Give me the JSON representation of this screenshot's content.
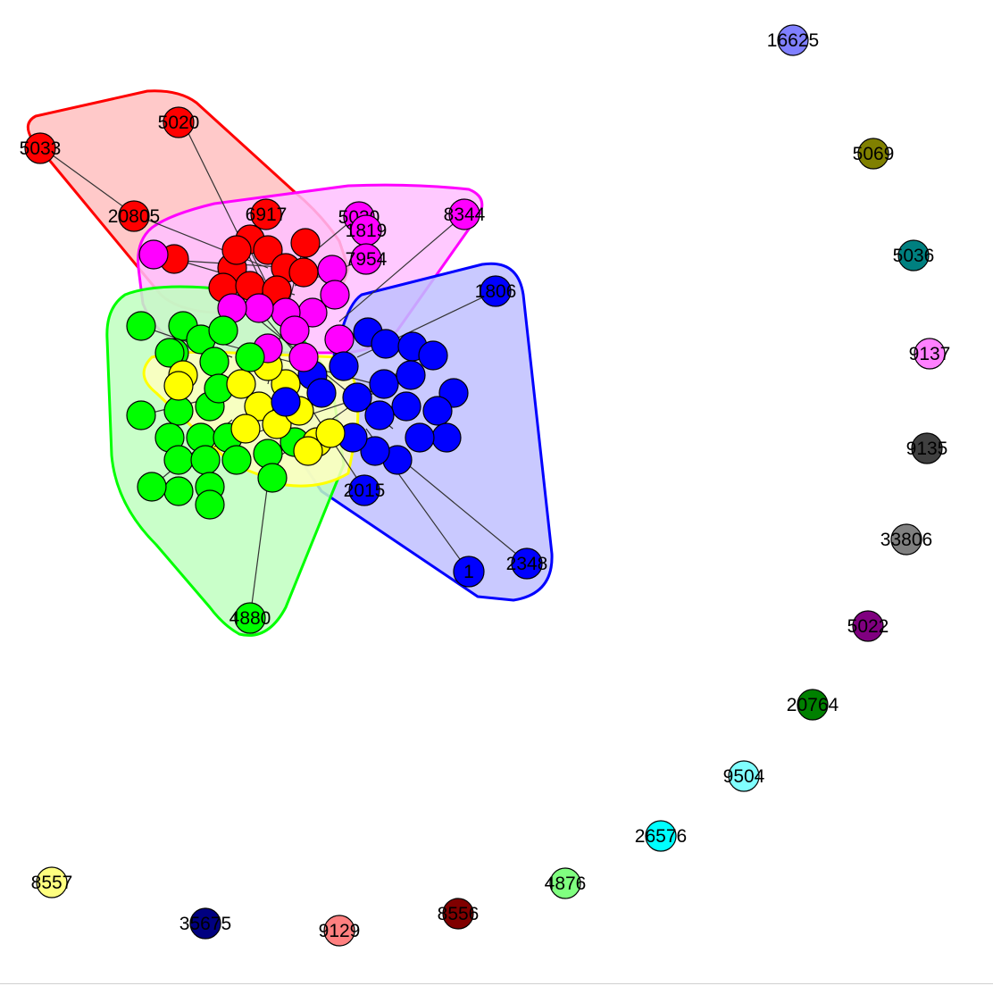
{
  "graph": {
    "groups": [
      {
        "id": "red",
        "color": "#FF0000",
        "fill": "#FFBFBF"
      },
      {
        "id": "magenta",
        "color": "#FF00FF",
        "fill": "#FFBFFF"
      },
      {
        "id": "blue",
        "color": "#0000FF",
        "fill": "#BFBFFF"
      },
      {
        "id": "green",
        "color": "#00FF00",
        "fill": "#BFFFBF"
      },
      {
        "id": "yellow",
        "color": "#FFFF00",
        "fill": "#FFFFBF"
      }
    ],
    "nodes": [
      {
        "id": "5020",
        "label": "5020",
        "group": "red",
        "color": "#FF0000"
      },
      {
        "id": "5033",
        "label": "5033",
        "group": "red",
        "color": "#FF0000"
      },
      {
        "id": "20805",
        "label": "20805",
        "group": "red",
        "color": "#FF0000"
      },
      {
        "id": "6917",
        "label": "6917",
        "group": "red",
        "color": "#FF0000"
      },
      {
        "id": "5030",
        "label": "5030",
        "group": "magenta",
        "color": "#FF00FF"
      },
      {
        "id": "8344",
        "label": "8344",
        "group": "magenta",
        "color": "#FF00FF"
      },
      {
        "id": "1819",
        "label": "1819",
        "group": "magenta",
        "color": "#FF00FF"
      },
      {
        "id": "7954",
        "label": "7954",
        "group": "magenta",
        "color": "#FF00FF"
      },
      {
        "id": "1806",
        "label": "1806",
        "group": "blue",
        "color": "#0000FF"
      },
      {
        "id": "2015",
        "label": "2015",
        "group": "blue",
        "color": "#0000FF"
      },
      {
        "id": "1",
        "label": "1",
        "group": "blue",
        "color": "#0000FF"
      },
      {
        "id": "2348",
        "label": "2348",
        "group": "blue",
        "color": "#0000FF"
      },
      {
        "id": "4880",
        "label": "4880",
        "group": "green",
        "color": "#00FF00"
      },
      {
        "id": "16625",
        "label": "16625",
        "group": "single",
        "color": "#8080FF"
      },
      {
        "id": "5069",
        "label": "5069",
        "group": "single",
        "color": "#808000"
      },
      {
        "id": "5036",
        "label": "5036",
        "group": "single",
        "color": "#008080"
      },
      {
        "id": "9137",
        "label": "9137",
        "group": "single",
        "color": "#FF80FF"
      },
      {
        "id": "9135",
        "label": "9135",
        "group": "single",
        "color": "#404040"
      },
      {
        "id": "33806",
        "label": "33806",
        "group": "single",
        "color": "#808080"
      },
      {
        "id": "5022",
        "label": "5022",
        "group": "single",
        "color": "#800080"
      },
      {
        "id": "20764",
        "label": "20764",
        "group": "single",
        "color": "#008000"
      },
      {
        "id": "9504",
        "label": "9504",
        "group": "single",
        "color": "#80FFFF"
      },
      {
        "id": "26576",
        "label": "26576",
        "group": "single",
        "color": "#00FFFF"
      },
      {
        "id": "4876",
        "label": "4876",
        "group": "single",
        "color": "#80FF80"
      },
      {
        "id": "8556",
        "label": "8556",
        "group": "single",
        "color": "#800000"
      },
      {
        "id": "9129",
        "label": "9129",
        "group": "single",
        "color": "#FF8080"
      },
      {
        "id": "35675",
        "label": "35675",
        "group": "single",
        "color": "#000080"
      },
      {
        "id": "8557",
        "label": "8557",
        "group": "single",
        "color": "#FFFF80"
      }
    ],
    "edges": [
      [
        "5033",
        "20805"
      ],
      [
        "5020",
        "6917"
      ],
      [
        "20805",
        "6917"
      ],
      [
        "8344",
        "7954"
      ],
      [
        "5030",
        "7954"
      ],
      [
        "1806",
        "2015"
      ],
      [
        "1",
        "2015"
      ],
      [
        "2348",
        "2015"
      ],
      [
        "4880",
        "2015"
      ]
    ]
  }
}
